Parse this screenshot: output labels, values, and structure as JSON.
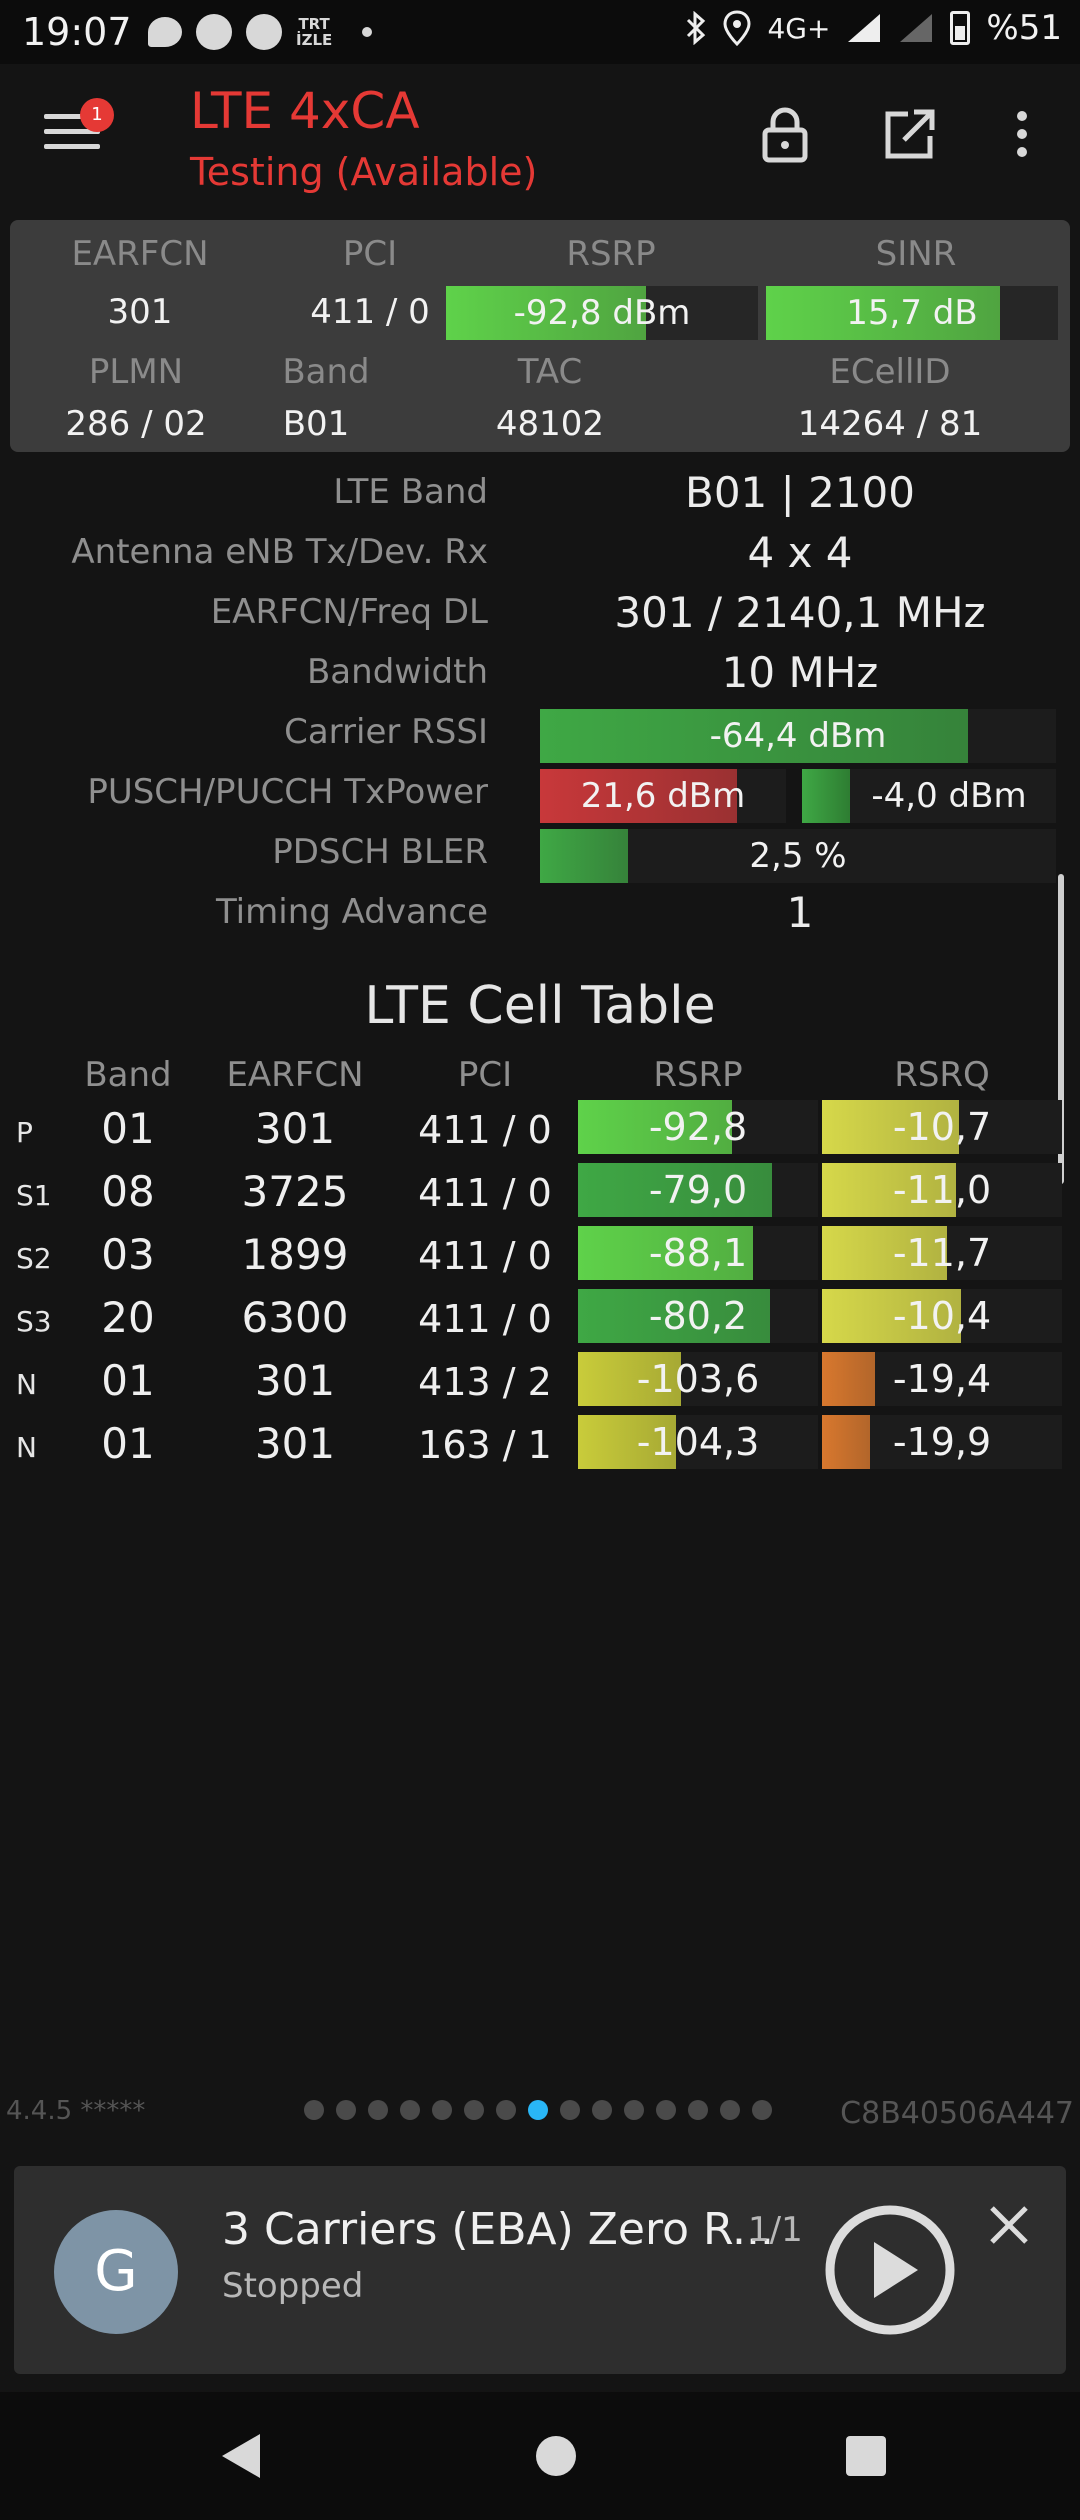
{
  "status_bar": {
    "time": "19:07",
    "trt_line1": "TRT",
    "trt_line2": "İZLE",
    "network": "4G+",
    "battery": "%51"
  },
  "header": {
    "badge": "1",
    "title": "LTE 4xCA",
    "subtitle": "Testing (Available)"
  },
  "summary": {
    "earfcn_label": "EARFCN",
    "earfcn": "301",
    "pci_label": "PCI",
    "pci": "411 / 0",
    "rsrp_label": "RSRP",
    "rsrp": "-92,8 dBm",
    "rsrp_fill": 0.64,
    "sinr_label": "SINR",
    "sinr": "15,7 dB",
    "sinr_fill": 0.8,
    "plmn_label": "PLMN",
    "plmn": "286 / 02",
    "band_label": "Band",
    "band": "B01",
    "tac_label": "TAC",
    "tac": "48102",
    "ecellid_label": "ECellID",
    "ecellid": "14264 / 81"
  },
  "info": {
    "lte_band_label": "LTE Band",
    "lte_band": "B01 | 2100",
    "antenna_label": "Antenna eNB Tx/Dev. Rx",
    "antenna": "4 x 4",
    "earfcn_freq_label": "EARFCN/Freq DL",
    "earfcn_freq": "301 / 2140,1 MHz",
    "bandwidth_label": "Bandwidth",
    "bandwidth": "10 MHz",
    "rssi_label": "Carrier RSSI",
    "rssi": "-64,4 dBm",
    "rssi_fill": 0.83,
    "txpower_label": "PUSCH/PUCCH TxPower",
    "pusch": "21,6 dBm",
    "pusch_fill": 0.8,
    "pucch": "-4,0 dBm",
    "pucch_fill": 0.3,
    "bler_label": "PDSCH BLER",
    "bler": "2,5 %",
    "bler_fill": 0.17,
    "ta_label": "Timing Advance",
    "ta": "1"
  },
  "cell_table": {
    "title": "LTE Cell Table",
    "headers": {
      "band": "Band",
      "earfcn": "EARFCN",
      "pci": "PCI",
      "rsrp": "RSRP",
      "rsrq": "RSRQ"
    },
    "rows": [
      {
        "type": "P",
        "band": "01",
        "earfcn": "301",
        "pci": "411 / 0",
        "rsrp": "-92,8",
        "rsrp_fill": 0.64,
        "rsrp_color": "#5fd24a",
        "rsrq": "-10,7",
        "rsrq_fill": 0.57,
        "rsrq_color": "#d6d84a"
      },
      {
        "type": "S1",
        "band": "08",
        "earfcn": "3725",
        "pci": "411 / 0",
        "rsrp": "-79,0",
        "rsrp_fill": 0.81,
        "rsrp_color": "#3fa845",
        "rsrq": "-11,0",
        "rsrq_fill": 0.56,
        "rsrq_color": "#d6d84a"
      },
      {
        "type": "S2",
        "band": "03",
        "earfcn": "1899",
        "pci": "411 / 0",
        "rsrp": "-88,1",
        "rsrp_fill": 0.73,
        "rsrp_color": "#5fd24a",
        "rsrq": "-11,7",
        "rsrq_fill": 0.52,
        "rsrq_color": "#d6d84a"
      },
      {
        "type": "S3",
        "band": "20",
        "earfcn": "6300",
        "pci": "411 / 0",
        "rsrp": "-80,2",
        "rsrp_fill": 0.8,
        "rsrp_color": "#3fa845",
        "rsrq": "-10,4",
        "rsrq_fill": 0.58,
        "rsrq_color": "#d6d84a"
      },
      {
        "type": "N",
        "band": "01",
        "earfcn": "301",
        "pci": "413 / 2",
        "rsrp": "-103,6",
        "rsrp_fill": 0.43,
        "rsrp_color": "#c9cc3a",
        "rsrq": "-19,4",
        "rsrq_fill": 0.22,
        "rsrq_color": "#d8782e"
      },
      {
        "type": "N",
        "band": "01",
        "earfcn": "301",
        "pci": "163 / 1",
        "rsrp": "-104,3",
        "rsrp_fill": 0.41,
        "rsrp_color": "#c9cc3a",
        "rsrq": "-19,9",
        "rsrq_fill": 0.2,
        "rsrq_color": "#d8782e"
      }
    ]
  },
  "footer": {
    "version": "4.4.5 *****",
    "device_id": "C8B40506A447",
    "page_count": 15,
    "active_page": 7
  },
  "player": {
    "avatar_letter": "G",
    "title": "3 Carriers (EBA) Zero R...",
    "count": "1/1",
    "status": "Stopped"
  },
  "colors": {
    "accent_red": "#e53935",
    "green_bright": "#5fd24a",
    "green_dark": "#3fa845",
    "red_bar": "#c8383a",
    "pager_active": "#29b6f6"
  }
}
